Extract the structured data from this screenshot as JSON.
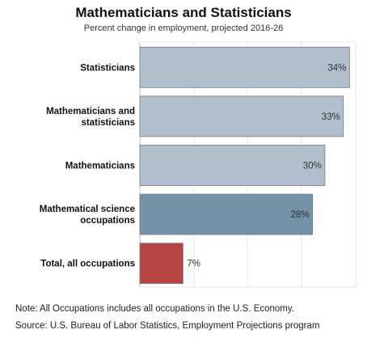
{
  "chart_data": {
    "type": "bar",
    "orientation": "horizontal",
    "title": "Mathematicians and Statisticians",
    "subtitle": "Percent change in employment, projected 2016-26",
    "categories": [
      "Statisticians",
      "Mathematicians and statisticians",
      "Mathematicians",
      "Mathematical science occupations",
      "Total, all occupations"
    ],
    "category_lines": [
      [
        "Statisticians"
      ],
      [
        "Mathematicians and",
        "statisticians"
      ],
      [
        "Mathematicians"
      ],
      [
        "Mathematical science",
        "occupations"
      ],
      [
        "Total, all occupations"
      ]
    ],
    "values": [
      34,
      33,
      30,
      28,
      7
    ],
    "value_labels": [
      "34%",
      "33%",
      "30%",
      "28%",
      "7%"
    ],
    "bar_colors": [
      "#b0bfcb",
      "#b0bfcb",
      "#b0bfcb",
      "#7391a7",
      "#b84343"
    ],
    "xlim": [
      0,
      35
    ],
    "grid": true,
    "legend": "none"
  },
  "notes": {
    "note": "Note: All Occupations includes all occupations in the U.S. Economy.",
    "source": "Source: U.S. Bureau of Labor Statistics, Employment Projections program"
  }
}
